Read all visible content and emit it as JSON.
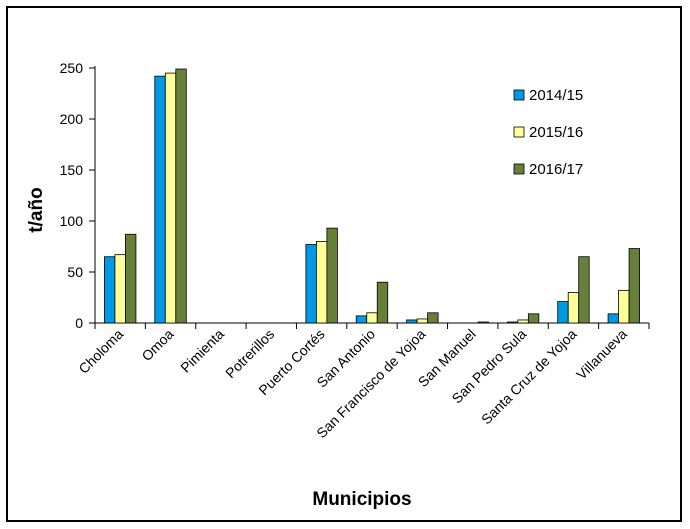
{
  "chart_data": {
    "type": "bar",
    "title": "",
    "xlabel": "Municipios",
    "ylabel": "t/año",
    "ylim": [
      0,
      250
    ],
    "yticks": [
      0,
      50,
      100,
      150,
      200,
      250
    ],
    "grid": false,
    "legend_position": "top-right",
    "categories": [
      "Choloma",
      "Omoa",
      "Pimienta",
      "Potrerillos",
      "Puerto Cortés",
      "San Antonio",
      "San Francisco de Yojoa",
      "San Manuel",
      "San Pedro Sula",
      "Santa Cruz de Yojoa",
      "Villanueva"
    ],
    "series": [
      {
        "name": "2014/15",
        "color": "#0099E6",
        "values": [
          65,
          242,
          0,
          0,
          77,
          7,
          3,
          0,
          1,
          21,
          9
        ]
      },
      {
        "name": "2015/16",
        "color": "#FFFF99",
        "values": [
          67,
          245,
          0,
          0,
          80,
          10,
          4,
          0,
          3,
          30,
          32
        ]
      },
      {
        "name": "2016/17",
        "color": "#66803A",
        "values": [
          87,
          249,
          0,
          0,
          93,
          40,
          10,
          1,
          9,
          65,
          73
        ]
      }
    ]
  }
}
